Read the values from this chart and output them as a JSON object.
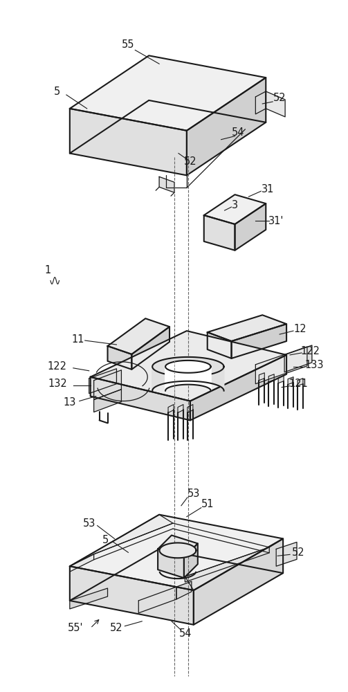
{
  "bg_color": "#ffffff",
  "line_color": "#1a1a1a",
  "lw_main": 1.5,
  "lw_thin": 0.9,
  "lw_dash": 0.8,
  "label_fontsize": 10.5,
  "fig_width": 5.03,
  "fig_height": 10.0,
  "dpi": 100
}
